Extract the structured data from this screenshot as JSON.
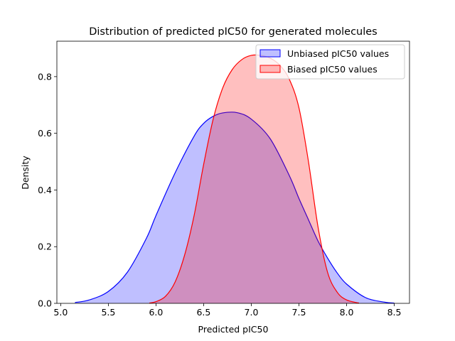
{
  "chart_data": {
    "type": "area",
    "title": "Distribution of predicted pIC50 for generated molecules",
    "xlabel": "Predicted pIC50",
    "ylabel": "Density",
    "xlim": [
      4.96,
      8.66
    ],
    "ylim": [
      0.0,
      0.925
    ],
    "xticks": [
      5.0,
      5.5,
      6.0,
      6.5,
      7.0,
      7.5,
      8.0,
      8.5
    ],
    "yticks": [
      0.0,
      0.2,
      0.4,
      0.6,
      0.8
    ],
    "xtick_labels": [
      "5.0",
      "5.5",
      "6.0",
      "6.5",
      "7.0",
      "7.5",
      "8.0",
      "8.5"
    ],
    "ytick_labels": [
      "0.0",
      "0.2",
      "0.4",
      "0.6",
      "0.8"
    ],
    "grid": false,
    "legend_position": "top-right",
    "series": [
      {
        "name": "Unbiased pIC50 values",
        "color": "#0000ff",
        "fill": "#0000ff",
        "fill_opacity": 0.25,
        "x": [
          5.15,
          5.3,
          5.5,
          5.7,
          5.9,
          6.0,
          6.2,
          6.4,
          6.5,
          6.6,
          6.7,
          6.85,
          7.0,
          7.2,
          7.4,
          7.5,
          7.6,
          7.7,
          7.8,
          7.9,
          8.0,
          8.2,
          8.4,
          8.5
        ],
        "y": [
          0.003,
          0.012,
          0.042,
          0.11,
          0.23,
          0.31,
          0.46,
          0.59,
          0.635,
          0.66,
          0.672,
          0.673,
          0.65,
          0.58,
          0.45,
          0.37,
          0.295,
          0.22,
          0.16,
          0.108,
          0.068,
          0.02,
          0.004,
          0.001
        ]
      },
      {
        "name": "Biased pIC50 values",
        "color": "#ff0000",
        "fill": "#ff0000",
        "fill_opacity": 0.25,
        "x": [
          5.93,
          6.0,
          6.1,
          6.2,
          6.3,
          6.4,
          6.5,
          6.6,
          6.7,
          6.8,
          6.9,
          7.0,
          7.1,
          7.2,
          7.3,
          7.4,
          7.5,
          7.6,
          7.7,
          7.8,
          7.9,
          8.0,
          8.13
        ],
        "y": [
          0.001,
          0.006,
          0.025,
          0.075,
          0.17,
          0.31,
          0.49,
          0.65,
          0.76,
          0.825,
          0.86,
          0.875,
          0.875,
          0.865,
          0.84,
          0.79,
          0.69,
          0.5,
          0.27,
          0.11,
          0.04,
          0.012,
          0.001
        ]
      }
    ]
  }
}
